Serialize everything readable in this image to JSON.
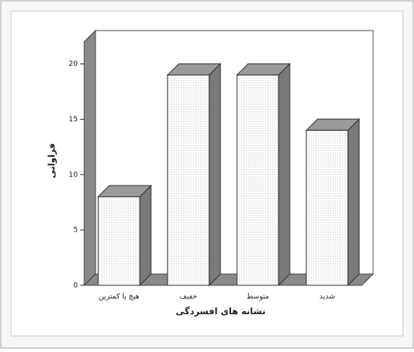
{
  "chart_data": {
    "type": "bar",
    "categories": [
      "هیچ یا کمترین",
      "خفیف",
      "متوسط",
      "شدید"
    ],
    "values": [
      8,
      19,
      19,
      14
    ],
    "x_label": "نشانه های افسردگی",
    "y_label": "فراوانی",
    "ylim": [
      0,
      22
    ],
    "yticks": [
      0,
      5,
      10,
      15,
      20
    ],
    "color": "#ffffff",
    "top_color": "#9a9a9a",
    "side_color": "#7a7a7a"
  }
}
